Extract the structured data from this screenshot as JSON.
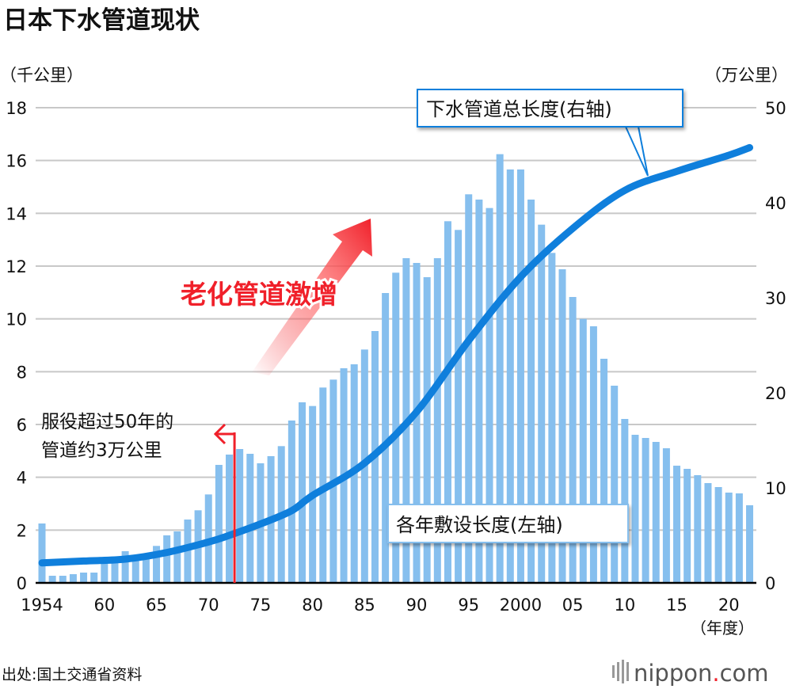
{
  "title": "日本下水管道现状",
  "source": "出处:国土交通省资料",
  "logo": {
    "text_main": "nippon",
    "text_dot": ".",
    "text_tail": "com"
  },
  "colors": {
    "bars": "#86bfee",
    "line": "#0f7fdc",
    "accent": "#f0202a",
    "grid": "#c8c8c8"
  },
  "chart_data": {
    "type": "bar+line",
    "title": "日本下水管道现状",
    "left_axis": {
      "label": "（千公里）",
      "range": [
        0,
        18
      ],
      "ticks": [
        "0",
        "2",
        "4",
        "6",
        "8",
        "10",
        "12",
        "14",
        "16",
        "18"
      ]
    },
    "right_axis": {
      "label": "（万公里）",
      "range": [
        0,
        50
      ],
      "ticks": [
        "0",
        "10",
        "20",
        "30",
        "40",
        "50"
      ]
    },
    "x_axis": {
      "label": "（年度）",
      "range": [
        1954,
        2022
      ],
      "ticks": [
        {
          "year": 1954,
          "label": "1954"
        },
        {
          "year": 1960,
          "label": "60"
        },
        {
          "year": 1965,
          "label": "65"
        },
        {
          "year": 1970,
          "label": "70"
        },
        {
          "year": 1975,
          "label": "75"
        },
        {
          "year": 1980,
          "label": "80"
        },
        {
          "year": 1985,
          "label": "85"
        },
        {
          "year": 1990,
          "label": "90"
        },
        {
          "year": 1995,
          "label": "95"
        },
        {
          "year": 2000,
          "label": "2000"
        },
        {
          "year": 2005,
          "label": "05"
        },
        {
          "year": 2010,
          "label": "10"
        },
        {
          "year": 2015,
          "label": "15"
        },
        {
          "year": 2020,
          "label": "20"
        }
      ]
    },
    "grid": true,
    "series": [
      {
        "name": "各年敷设长度(左轴)",
        "type": "bar",
        "axis": "left",
        "x": [
          1954,
          1955,
          1956,
          1957,
          1958,
          1959,
          1960,
          1961,
          1962,
          1963,
          1964,
          1965,
          1966,
          1967,
          1968,
          1969,
          1970,
          1971,
          1972,
          1973,
          1974,
          1975,
          1976,
          1977,
          1978,
          1979,
          1980,
          1981,
          1982,
          1983,
          1984,
          1985,
          1986,
          1987,
          1988,
          1989,
          1990,
          1991,
          1992,
          1993,
          1994,
          1995,
          1996,
          1997,
          1998,
          1999,
          2000,
          2001,
          2002,
          2003,
          2004,
          2005,
          2006,
          2007,
          2008,
          2009,
          2010,
          2011,
          2012,
          2013,
          2014,
          2015,
          2016,
          2017,
          2018,
          2019,
          2020,
          2021,
          2022
        ],
        "values": [
          2.25,
          0.27,
          0.27,
          0.33,
          0.39,
          0.39,
          0.75,
          0.75,
          1.2,
          0.9,
          1.0,
          1.4,
          1.8,
          1.95,
          2.4,
          2.75,
          3.35,
          4.47,
          4.86,
          5.07,
          4.89,
          4.53,
          4.8,
          5.18,
          6.15,
          6.84,
          6.7,
          7.4,
          7.7,
          8.13,
          8.28,
          8.84,
          9.54,
          10.98,
          11.75,
          12.3,
          12.12,
          11.58,
          12.3,
          13.7,
          13.37,
          14.72,
          14.52,
          14.2,
          16.24,
          15.66,
          15.66,
          14.52,
          13.57,
          12.5,
          11.88,
          10.83,
          10.0,
          9.72,
          8.49,
          7.47,
          6.21,
          5.61,
          5.49,
          5.34,
          5.1,
          4.44,
          4.32,
          4.08,
          3.78,
          3.63,
          3.42,
          3.39,
          2.94
        ]
      },
      {
        "name": "下水管道总长度(右轴)",
        "type": "line",
        "axis": "right",
        "x": [
          1954,
          1958,
          1962,
          1966,
          1970,
          1972,
          1975,
          1978,
          1980,
          1985,
          1990,
          1995,
          2000,
          2005,
          2010,
          2015,
          2020,
          2022
        ],
        "values": [
          2.1,
          2.3,
          2.5,
          3.2,
          4.3,
          5.0,
          6.2,
          7.6,
          9.2,
          12.6,
          18.0,
          25.5,
          32.2,
          37.3,
          41.3,
          43.3,
          45.0,
          45.8
        ]
      }
    ],
    "annotations": {
      "aging_marker_year": 1972.5,
      "aging_text_line1": "服役超过50年的",
      "aging_text_line2": "管道约3万公里",
      "surge_text": "老化管道激增",
      "bar_callout": "各年敷设长度(左轴)",
      "line_callout": "下水管道总长度(右轴)"
    }
  }
}
